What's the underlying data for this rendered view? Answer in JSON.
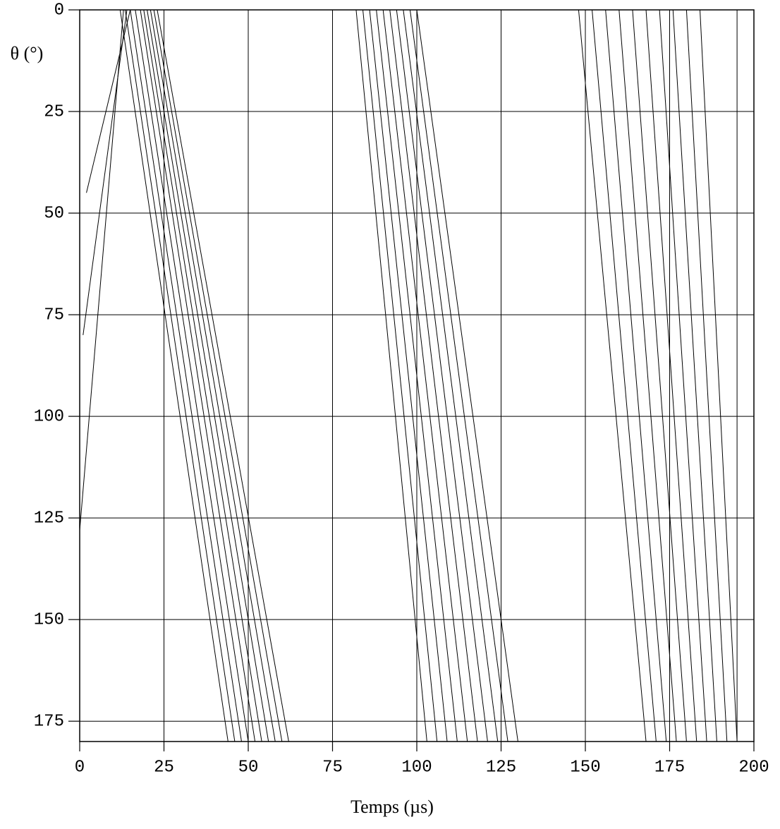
{
  "chart_data": {
    "type": "contour",
    "xlabel": "Temps (µs)",
    "ylabel": "θ (°)",
    "xlim": [
      0,
      200
    ],
    "ylim": [
      180,
      0
    ],
    "xticks": [
      0,
      25,
      50,
      75,
      100,
      125,
      150,
      175,
      200
    ],
    "yticks": [
      0,
      25,
      50,
      75,
      100,
      125,
      150,
      175
    ],
    "grid": true,
    "color": "#000000",
    "lines": [
      {
        "x": [
          0,
          13
        ],
        "y": [
          128,
          0
        ]
      },
      {
        "x": [
          1,
          14
        ],
        "y": [
          80,
          0
        ]
      },
      {
        "x": [
          2,
          15
        ],
        "y": [
          45,
          0
        ]
      },
      {
        "x": [
          12,
          44
        ],
        "y": [
          0,
          180
        ]
      },
      {
        "x": [
          13.5,
          46
        ],
        "y": [
          0,
          180
        ]
      },
      {
        "x": [
          15,
          48
        ],
        "y": [
          0,
          180
        ]
      },
      {
        "x": [
          16.5,
          50
        ],
        "y": [
          0,
          180
        ]
      },
      {
        "x": [
          18,
          52
        ],
        "y": [
          0,
          180
        ]
      },
      {
        "x": [
          19,
          54
        ],
        "y": [
          0,
          180
        ]
      },
      {
        "x": [
          20,
          56
        ],
        "y": [
          0,
          180
        ]
      },
      {
        "x": [
          21,
          58
        ],
        "y": [
          0,
          180
        ]
      },
      {
        "x": [
          22,
          60
        ],
        "y": [
          0,
          180
        ]
      },
      {
        "x": [
          23,
          62
        ],
        "y": [
          0,
          180
        ]
      },
      {
        "x": [
          82,
          103
        ],
        "y": [
          0,
          180
        ]
      },
      {
        "x": [
          84,
          106
        ],
        "y": [
          0,
          180
        ]
      },
      {
        "x": [
          86,
          109
        ],
        "y": [
          0,
          180
        ]
      },
      {
        "x": [
          88,
          112
        ],
        "y": [
          0,
          180
        ]
      },
      {
        "x": [
          90,
          115
        ],
        "y": [
          0,
          180
        ]
      },
      {
        "x": [
          92,
          118
        ],
        "y": [
          0,
          180
        ]
      },
      {
        "x": [
          94,
          121
        ],
        "y": [
          0,
          180
        ]
      },
      {
        "x": [
          96,
          124
        ],
        "y": [
          0,
          180
        ]
      },
      {
        "x": [
          98,
          127
        ],
        "y": [
          0,
          180
        ]
      },
      {
        "x": [
          100,
          130
        ],
        "y": [
          0,
          180
        ]
      },
      {
        "x": [
          148,
          168
        ],
        "y": [
          0,
          180
        ]
      },
      {
        "x": [
          152,
          171
        ],
        "y": [
          0,
          180
        ]
      },
      {
        "x": [
          156,
          174
        ],
        "y": [
          0,
          180
        ]
      },
      {
        "x": [
          160,
          177
        ],
        "y": [
          0,
          180
        ]
      },
      {
        "x": [
          164,
          180
        ],
        "y": [
          0,
          180
        ]
      },
      {
        "x": [
          168,
          183
        ],
        "y": [
          0,
          180
        ]
      },
      {
        "x": [
          172,
          186
        ],
        "y": [
          0,
          180
        ]
      },
      {
        "x": [
          176,
          189
        ],
        "y": [
          0,
          180
        ]
      },
      {
        "x": [
          180,
          192
        ],
        "y": [
          0,
          180
        ]
      },
      {
        "x": [
          184,
          195
        ],
        "y": [
          0,
          180
        ]
      },
      {
        "x": [
          195,
          195
        ],
        "y": [
          0,
          180
        ]
      }
    ]
  }
}
